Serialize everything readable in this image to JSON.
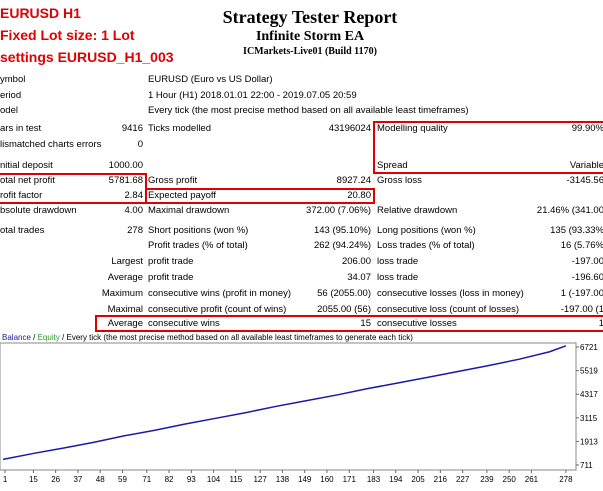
{
  "header": {
    "notes": [
      "EURUSD H1",
      "Fixed Lot size: 1 Lot",
      "settings EURUSD_H1_003"
    ],
    "title": "Strategy Tester Report",
    "subtitle": "Infinite Storm EA",
    "server": "ICMarkets-Live01 (Build 1170)"
  },
  "report": {
    "rows": [
      {
        "label": "ymbol",
        "label2": "EURUSD (Euro vs US Dollar)"
      },
      {
        "label": "eriod",
        "label2": "1 Hour (H1) 2018.01.01 22:00 - 2019.07.05 20:59"
      },
      {
        "label": "odel",
        "label2": "Every tick (the most precise method based on all available least timeframes)"
      },
      {
        "label": "ars in test",
        "value": "9416",
        "label2": "Ticks modelled",
        "value2": "43196024",
        "label3": "Modelling quality",
        "value3": "99.90%"
      },
      {
        "label": "lismatched charts errors",
        "value": "0"
      },
      {
        "label": "nitial deposit",
        "value": "1000.00",
        "label3": "Spread",
        "value3": "Variable"
      },
      {
        "label": "otal net profit",
        "value": "5781.68",
        "label2": "Gross profit",
        "value2": "8927.24",
        "label3": "Gross loss",
        "value3": "-3145.56"
      },
      {
        "label": "rofit factor",
        "value": "2.84",
        "label2": "Expected payoff",
        "value2": "20.80"
      },
      {
        "label": "bsolute drawdown",
        "value": "4.00",
        "label2": "Maximal drawdown",
        "value2": "372.00 (7.06%)",
        "label3": "Relative drawdown",
        "value3": "21.46% (341.00"
      },
      {
        "label": "otal trades",
        "value": "278",
        "label2": "Short positions (won %)",
        "value2": "143 (95.10%)",
        "label3": "Long positions (won %)",
        "value3": "135 (93.33%"
      },
      {
        "label2": "Profit trades (% of total)",
        "value2": "262 (94.24%)",
        "label3": "Loss trades (% of total)",
        "value3": "16 (5.76%"
      },
      {
        "value": "Largest",
        "label2": "profit trade",
        "value2": "206.00",
        "label3": "loss trade",
        "value3": "-197.00"
      },
      {
        "value": "Average",
        "label2": "profit trade",
        "value2": "34.07",
        "label3": "loss trade",
        "value3": "-196.60"
      },
      {
        "value": "Maximum",
        "label2": "consecutive wins (profit in money)",
        "value2": "56 (2055.00)",
        "label3": "consecutive losses (loss in money)",
        "value3": "1 (-197.00"
      },
      {
        "value": "Maximal",
        "label2": "consecutive profit (count of wins)",
        "value2": "2055.00 (56)",
        "label3": "consecutive loss (count of losses)",
        "value3": "-197.00 (1"
      },
      {
        "value": "Average",
        "label2": "consecutive wins",
        "value2": "15",
        "label3": "consecutive losses",
        "value3": "1"
      }
    ]
  },
  "chart_data": {
    "type": "line",
    "legend_separator": " / ",
    "note": "Every tick (the most precise method based on all available least timeframes to generate each tick)",
    "x": [
      0,
      15,
      30,
      45,
      60,
      75,
      90,
      105,
      120,
      135,
      150,
      165,
      180,
      195,
      210,
      225,
      240,
      255,
      270,
      278
    ],
    "series": [
      {
        "name": "Balance",
        "color": "#1a1aa6",
        "values": [
          1000,
          1300,
          1580,
          1870,
          2200,
          2480,
          2800,
          3090,
          3380,
          3700,
          3990,
          4280,
          4600,
          4890,
          5180,
          5480,
          5780,
          6100,
          6480,
          6781
        ]
      },
      {
        "name": "Equity",
        "color": "#2e9e2e"
      }
    ],
    "xlim": [
      -1.5,
      283
    ],
    "xticks": [
      1,
      15,
      26,
      37,
      48,
      59,
      71,
      82,
      93,
      104,
      115,
      127,
      138,
      149,
      160,
      171,
      183,
      194,
      205,
      216,
      227,
      239,
      250,
      261,
      278
    ],
    "ylim": [
      457,
      6925
    ],
    "yticks": [
      711,
      1913,
      3115,
      4317,
      5519,
      6721
    ]
  }
}
